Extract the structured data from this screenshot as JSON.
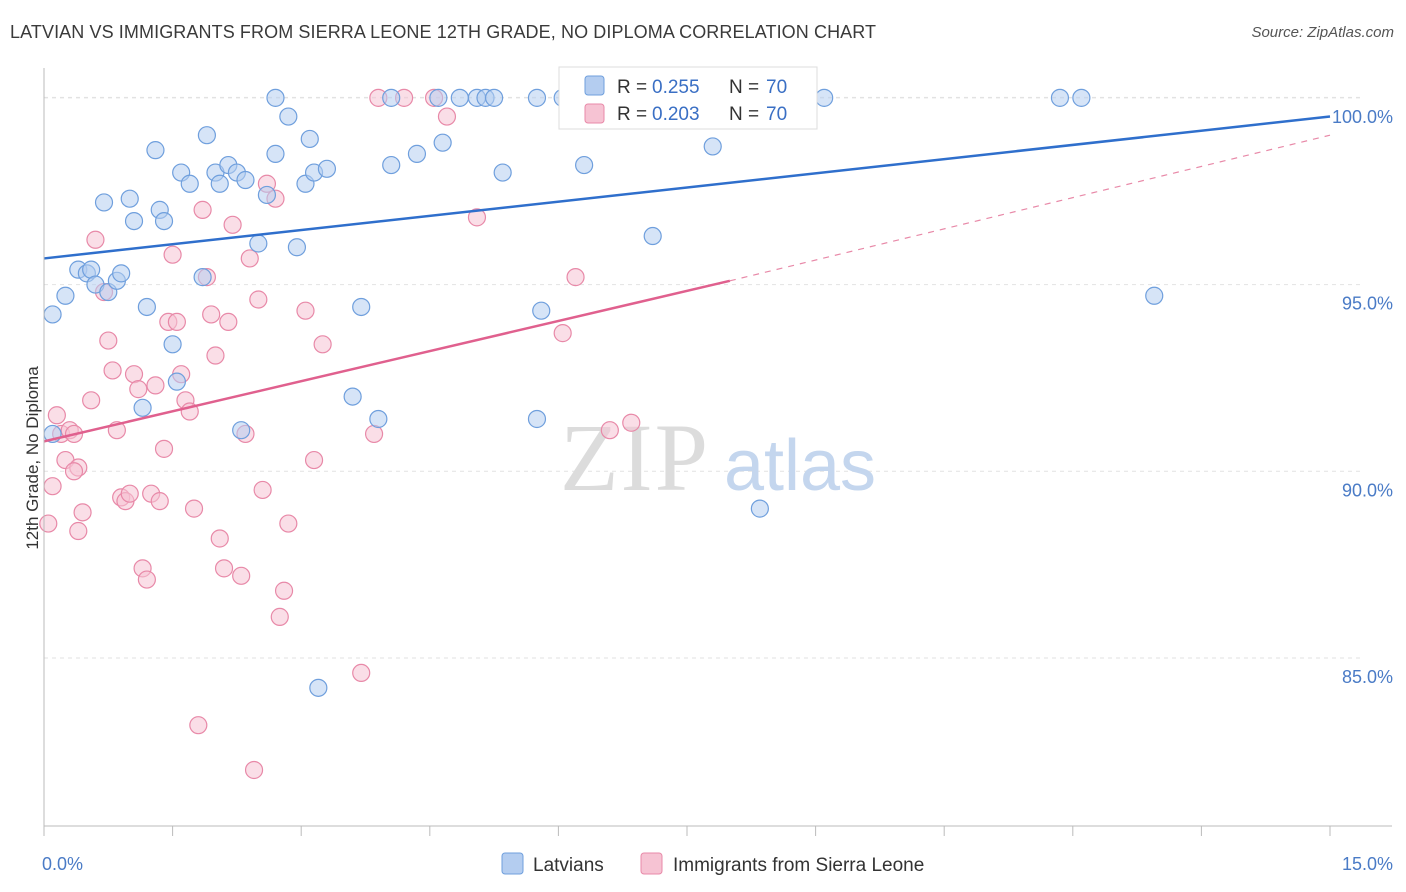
{
  "title": "LATVIAN VS IMMIGRANTS FROM SIERRA LEONE 12TH GRADE, NO DIPLOMA CORRELATION CHART",
  "source": "Source: ZipAtlas.com",
  "watermark": {
    "zip": "ZIP",
    "atlas": "atlas"
  },
  "chart_data": {
    "type": "scatter",
    "ylabel": "12th Grade, No Diploma",
    "xlim": [
      0,
      15
    ],
    "ylim": [
      80.5,
      100.8
    ],
    "x_tick_labels": [
      {
        "value": 0,
        "label": "0.0%"
      },
      {
        "value": 15,
        "label": "15.0%"
      }
    ],
    "y_tick_labels": [
      {
        "value": 100,
        "label": "100.0%"
      },
      {
        "value": 95,
        "label": "95.0%"
      },
      {
        "value": 90,
        "label": "90.0%"
      },
      {
        "value": 85,
        "label": "85.0%"
      }
    ],
    "x_minor_ticks": [
      0,
      1.5,
      3,
      4.5,
      6,
      7.5,
      9,
      10.5,
      12,
      13.5,
      15
    ],
    "grid": "horizontal-dashed",
    "legend_position": "top-center",
    "series": [
      {
        "name": "Latvians",
        "color": "#6f9fdd",
        "fill": "#b4cdf0",
        "R": "0.255",
        "N": "70",
        "trend": {
          "x0": 0,
          "y0": 95.7,
          "x1": 15,
          "y1": 99.5
        },
        "points": [
          [
            0.1,
            91.0
          ],
          [
            0.1,
            94.2
          ],
          [
            0.25,
            94.7
          ],
          [
            0.4,
            95.4
          ],
          [
            0.5,
            95.3
          ],
          [
            0.55,
            95.4
          ],
          [
            0.6,
            95.0
          ],
          [
            0.75,
            94.8
          ],
          [
            0.85,
            95.1
          ],
          [
            0.9,
            95.3
          ],
          [
            0.7,
            97.2
          ],
          [
            1.05,
            96.7
          ],
          [
            1.0,
            97.3
          ],
          [
            1.2,
            94.4
          ],
          [
            1.15,
            91.7
          ],
          [
            1.35,
            97.0
          ],
          [
            1.4,
            96.7
          ],
          [
            1.5,
            93.4
          ],
          [
            1.55,
            92.4
          ],
          [
            1.3,
            98.6
          ],
          [
            1.6,
            98.0
          ],
          [
            1.7,
            97.7
          ],
          [
            1.85,
            95.2
          ],
          [
            1.9,
            99.0
          ],
          [
            2.0,
            98.0
          ],
          [
            2.05,
            97.7
          ],
          [
            2.15,
            98.2
          ],
          [
            2.25,
            98.0
          ],
          [
            2.35,
            97.8
          ],
          [
            2.3,
            91.1
          ],
          [
            2.5,
            96.1
          ],
          [
            2.6,
            97.4
          ],
          [
            2.7,
            100.0
          ],
          [
            2.7,
            98.5
          ],
          [
            2.85,
            99.5
          ],
          [
            2.95,
            96.0
          ],
          [
            3.05,
            97.7
          ],
          [
            3.1,
            98.9
          ],
          [
            3.15,
            98.0
          ],
          [
            3.3,
            98.1
          ],
          [
            3.2,
            84.2
          ],
          [
            3.6,
            92.0
          ],
          [
            3.7,
            94.4
          ],
          [
            3.9,
            91.4
          ],
          [
            4.05,
            100.0
          ],
          [
            4.05,
            98.2
          ],
          [
            4.35,
            98.5
          ],
          [
            4.6,
            100.0
          ],
          [
            4.65,
            98.8
          ],
          [
            4.85,
            100.0
          ],
          [
            5.05,
            100.0
          ],
          [
            5.15,
            100.0
          ],
          [
            5.25,
            100.0
          ],
          [
            5.35,
            98.0
          ],
          [
            5.75,
            100.0
          ],
          [
            5.75,
            91.4
          ],
          [
            5.8,
            94.3
          ],
          [
            6.05,
            100.0
          ],
          [
            6.3,
            98.2
          ],
          [
            6.5,
            100.0
          ],
          [
            6.6,
            100.0
          ],
          [
            7.1,
            96.3
          ],
          [
            7.2,
            100.0
          ],
          [
            7.5,
            100.0
          ],
          [
            7.8,
            98.7
          ],
          [
            8.35,
            89.0
          ],
          [
            9.1,
            100.0
          ],
          [
            11.85,
            100.0
          ],
          [
            12.1,
            100.0
          ],
          [
            12.95,
            94.7
          ]
        ]
      },
      {
        "name": "Immigrants from Sierra Leone",
        "color": "#e889a8",
        "fill": "#f6c3d3",
        "R": "0.203",
        "N": "70",
        "trend": {
          "x0": 0,
          "y0": 90.8,
          "x1": 8.0,
          "y1": 95.1
        },
        "trend_dashed": {
          "x0": 8.0,
          "y0": 95.1,
          "x1": 15,
          "y1": 99.0
        },
        "points": [
          [
            0.05,
            88.6
          ],
          [
            0.1,
            89.6
          ],
          [
            0.15,
            91.5
          ],
          [
            0.2,
            91.0
          ],
          [
            0.25,
            90.3
          ],
          [
            0.3,
            91.1
          ],
          [
            0.35,
            91.0
          ],
          [
            0.4,
            90.1
          ],
          [
            0.35,
            90.0
          ],
          [
            0.45,
            88.9
          ],
          [
            0.4,
            88.4
          ],
          [
            0.55,
            91.9
          ],
          [
            0.6,
            96.2
          ],
          [
            0.7,
            94.8
          ],
          [
            0.75,
            93.5
          ],
          [
            0.8,
            92.7
          ],
          [
            0.85,
            91.1
          ],
          [
            0.9,
            89.3
          ],
          [
            0.95,
            89.2
          ],
          [
            1.0,
            89.4
          ],
          [
            1.05,
            92.6
          ],
          [
            1.1,
            92.2
          ],
          [
            1.15,
            87.4
          ],
          [
            1.2,
            87.1
          ],
          [
            1.25,
            89.4
          ],
          [
            1.3,
            92.3
          ],
          [
            1.35,
            89.2
          ],
          [
            1.4,
            90.6
          ],
          [
            1.45,
            94.0
          ],
          [
            1.5,
            95.8
          ],
          [
            1.55,
            94.0
          ],
          [
            1.6,
            92.6
          ],
          [
            1.65,
            91.9
          ],
          [
            1.7,
            91.6
          ],
          [
            1.75,
            89.0
          ],
          [
            1.8,
            83.2
          ],
          [
            1.85,
            97.0
          ],
          [
            1.9,
            95.2
          ],
          [
            1.95,
            94.2
          ],
          [
            2.0,
            93.1
          ],
          [
            2.05,
            88.2
          ],
          [
            2.1,
            87.4
          ],
          [
            2.15,
            94.0
          ],
          [
            2.2,
            96.6
          ],
          [
            2.3,
            87.2
          ],
          [
            2.35,
            91.0
          ],
          [
            2.4,
            95.7
          ],
          [
            2.45,
            82.0
          ],
          [
            2.5,
            94.6
          ],
          [
            2.55,
            89.5
          ],
          [
            2.6,
            97.7
          ],
          [
            2.7,
            97.3
          ],
          [
            2.75,
            86.1
          ],
          [
            2.8,
            86.8
          ],
          [
            2.85,
            88.6
          ],
          [
            3.05,
            94.3
          ],
          [
            3.15,
            90.3
          ],
          [
            3.25,
            93.4
          ],
          [
            3.7,
            84.6
          ],
          [
            3.85,
            91.0
          ],
          [
            3.9,
            100.0
          ],
          [
            4.2,
            100.0
          ],
          [
            4.55,
            100.0
          ],
          [
            4.7,
            99.5
          ],
          [
            5.05,
            96.8
          ],
          [
            6.05,
            93.7
          ],
          [
            6.2,
            95.2
          ],
          [
            6.4,
            100.0
          ],
          [
            6.6,
            91.1
          ],
          [
            6.85,
            91.3
          ]
        ]
      }
    ]
  },
  "legend": {
    "r_label": "R =",
    "n_label": "N ="
  }
}
